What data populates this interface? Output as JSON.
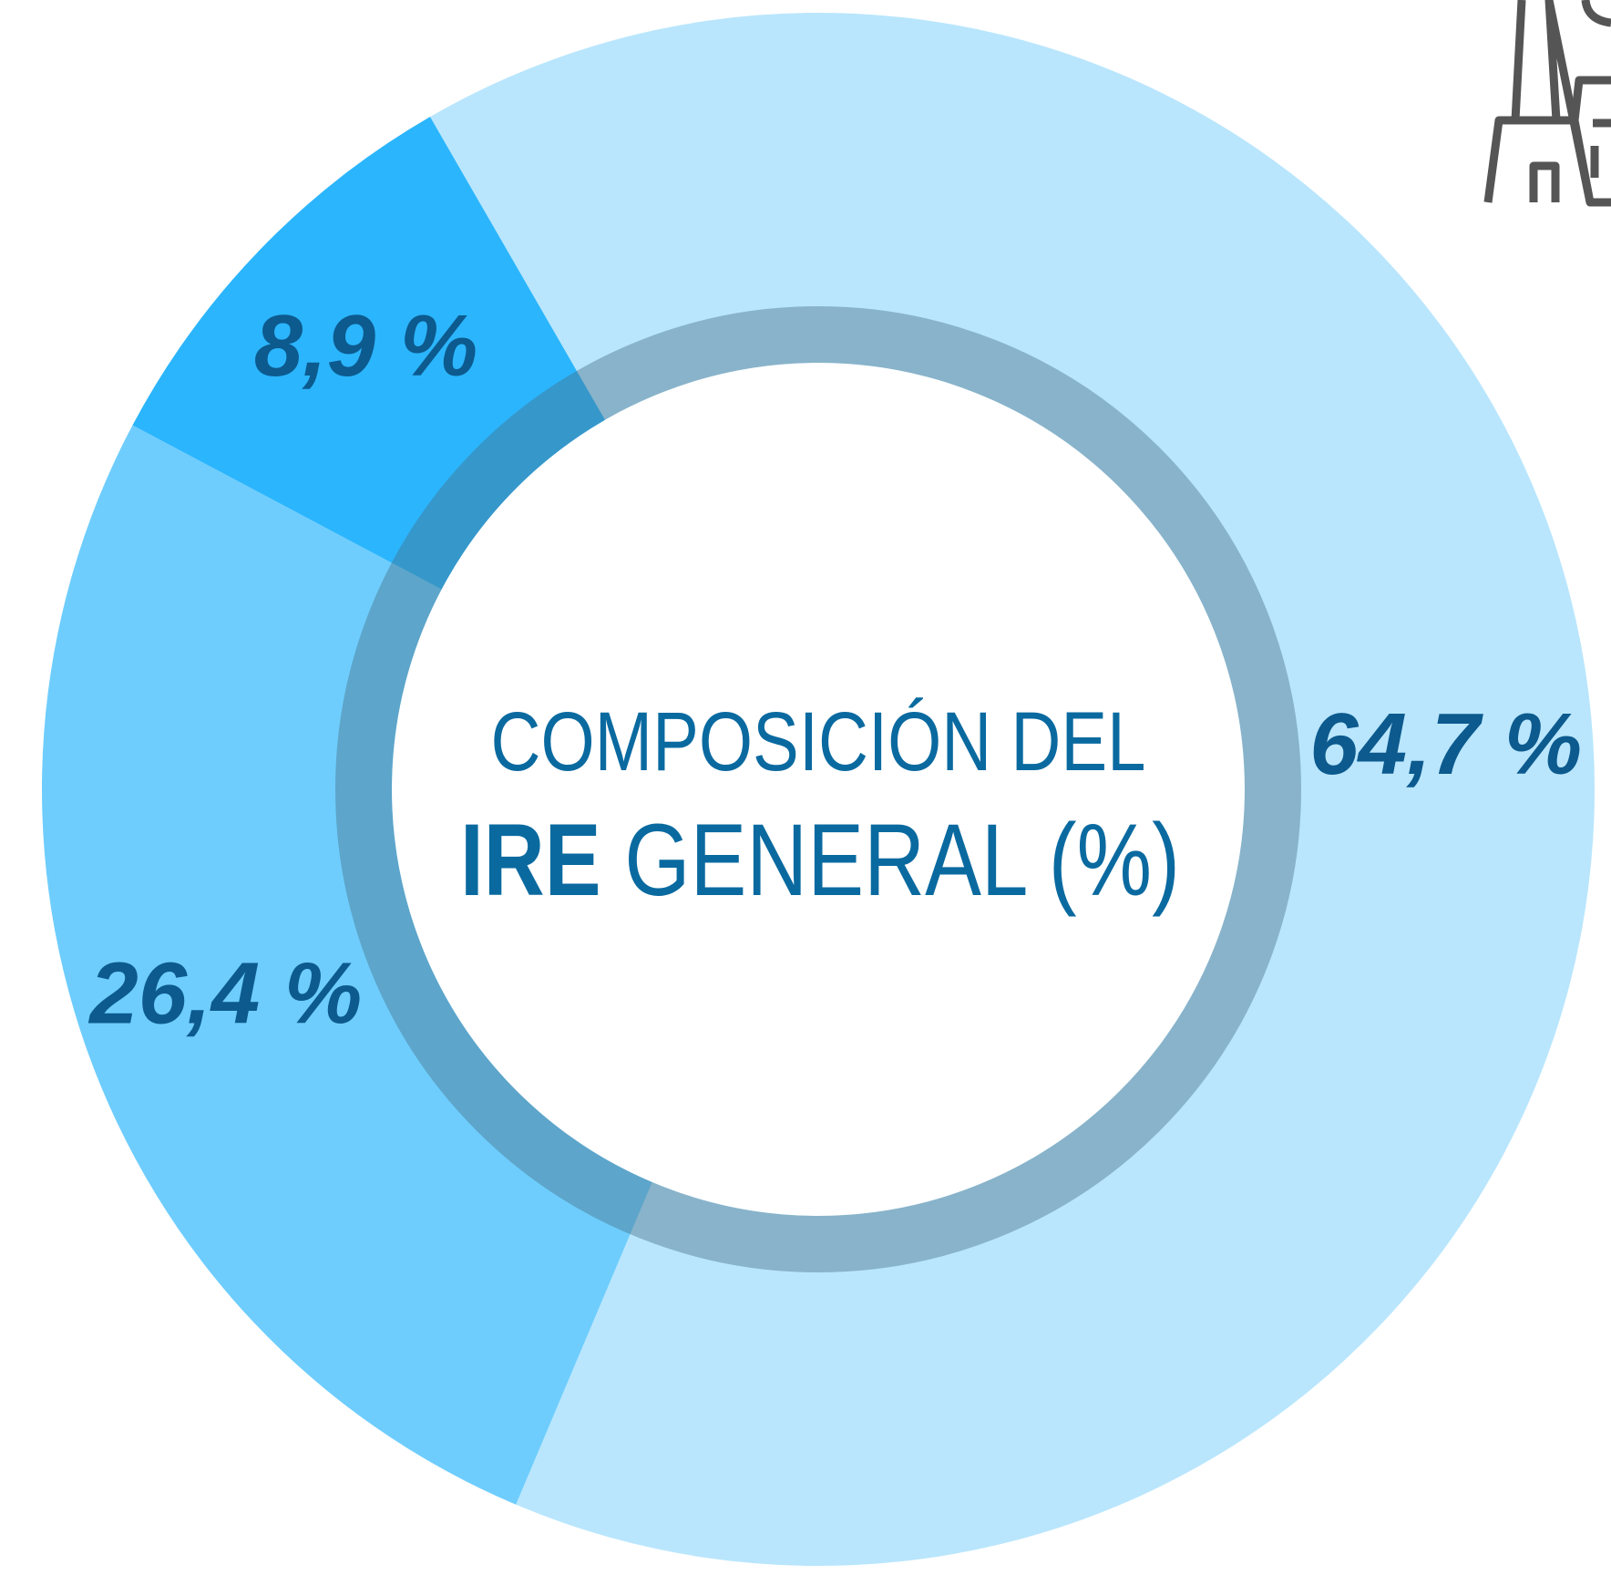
{
  "chart_data": {
    "type": "donut",
    "title_line1": "COMPOSICIÓN DEL",
    "title_bold": "IRE",
    "title_rest": "GENERAL (%)",
    "values": [
      64.7,
      26.4,
      8.9
    ],
    "value_labels": [
      "64,7 %",
      "26,4 %",
      "8,9 %"
    ],
    "colors": [
      "#b9e6fd",
      "#6ecdfd",
      "#2bb5fd"
    ]
  }
}
